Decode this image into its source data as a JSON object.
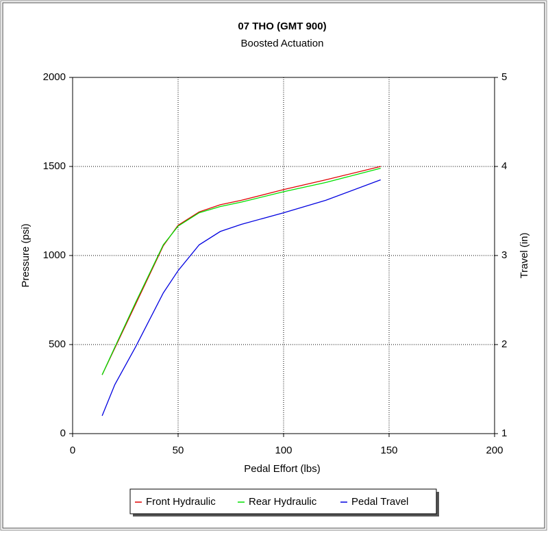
{
  "chart_data": {
    "type": "line",
    "title": "07 THO  (GMT 900)",
    "subtitle": "Boosted Actuation",
    "x_label": "Pedal Effort (lbs)",
    "y_label": "Pressure (psi)",
    "y2_label": "Travel (in)",
    "x": [
      14,
      20,
      30,
      43,
      50,
      60,
      70,
      80,
      100,
      120,
      146
    ],
    "series": [
      {
        "name": "Front Hydraulic",
        "color": "#e00000",
        "values": [
          330,
          480,
          730,
          1055,
          1170,
          1245,
          1285,
          1310,
          1370,
          1425,
          1500
        ]
      },
      {
        "name": "Rear Hydraulic",
        "color": "#00e000",
        "values": [
          330,
          485,
          740,
          1060,
          1165,
          1240,
          1275,
          1300,
          1358,
          1410,
          1490
        ]
      },
      {
        "name": "Pedal Travel",
        "color": "#0000e0",
        "axis": "y2",
        "values": [
          1.2,
          1.55,
          1.98,
          2.58,
          2.83,
          3.12,
          3.27,
          3.35,
          3.48,
          3.62,
          3.85
        ]
      }
    ],
    "xlim": [
      0,
      200
    ],
    "xticks": [
      0,
      50,
      100,
      150,
      200
    ],
    "ylim": [
      0,
      2000
    ],
    "yticks": [
      0,
      500,
      1000,
      1500,
      2000
    ],
    "y2lim": [
      1,
      5
    ],
    "y2ticks": [
      1,
      2,
      3,
      4,
      5
    ],
    "grid": true,
    "legend": "bottom"
  }
}
